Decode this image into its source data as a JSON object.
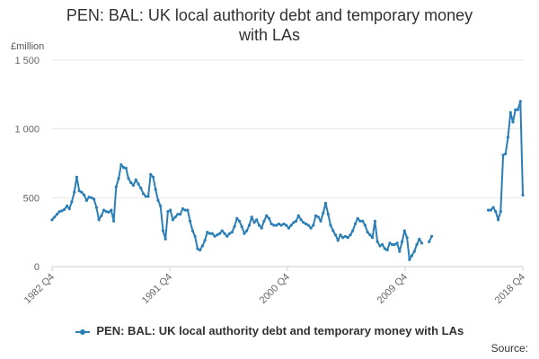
{
  "title_line1": "PEN: BAL: UK local authority debt and temporary money",
  "title_line2": "with LAs",
  "unit_label": "£million",
  "legend_label": "PEN: BAL: UK local authority debt and temporary money with LAs",
  "source_label": "Source:",
  "colors": {
    "series": "#2B7EB6",
    "grid": "#e6e6e6",
    "axis": "#cccccc"
  },
  "chart_data": {
    "type": "line",
    "title": "PEN: BAL: UK local authority debt and temporary money with LAs",
    "ylabel": "£million",
    "ylim": [
      0,
      1500
    ],
    "yticks": [
      0,
      500,
      1000,
      1500
    ],
    "ytick_labels": [
      "0",
      "500",
      "1 000",
      "1 500"
    ],
    "xticks": [
      "1982 Q4",
      "1991 Q4",
      "2000 Q4",
      "2009 Q4",
      "2018 Q4"
    ],
    "x_start": "1982 Q4",
    "x_end": "2018 Q4",
    "frequency": "monthly",
    "grid": "horizontal",
    "legend_position": "bottom",
    "series": [
      {
        "name": "PEN: BAL: UK local authority debt and temporary money with LAs",
        "values": [
          340,
          360,
          380,
          400,
          405,
          415,
          440,
          420,
          470,
          540,
          650,
          550,
          540,
          520,
          480,
          505,
          500,
          490,
          430,
          340,
          370,
          410,
          400,
          395,
          410,
          330,
          580,
          640,
          740,
          720,
          715,
          640,
          610,
          590,
          630,
          600,
          570,
          530,
          510,
          510,
          670,
          650,
          560,
          480,
          440,
          260,
          200,
          400,
          410,
          340,
          360,
          380,
          380,
          420,
          410,
          410,
          330,
          260,
          220,
          130,
          120,
          150,
          190,
          250,
          240,
          240,
          220,
          230,
          240,
          260,
          240,
          220,
          240,
          250,
          290,
          350,
          330,
          290,
          240,
          260,
          300,
          360,
          320,
          340,
          300,
          280,
          330,
          370,
          350,
          310,
          300,
          300,
          310,
          300,
          310,
          300,
          280,
          300,
          320,
          330,
          370,
          340,
          320,
          310,
          300,
          280,
          300,
          370,
          360,
          330,
          390,
          460,
          380,
          300,
          260,
          230,
          190,
          230,
          210,
          220,
          210,
          230,
          260,
          310,
          350,
          330,
          330,
          300,
          250,
          230,
          210,
          330,
          180,
          150,
          160,
          130,
          120,
          170,
          160,
          160,
          170,
          110,
          180,
          260,
          210,
          50,
          80,
          110,
          160,
          200,
          170,
          null,
          null,
          180,
          220,
          null,
          null,
          null,
          null,
          null,
          null,
          null,
          null,
          null,
          null,
          null,
          null,
          null,
          null,
          null,
          null,
          null,
          null,
          null,
          null,
          null,
          null,
          410,
          410,
          430,
          400,
          340,
          400,
          810,
          820,
          940,
          1120,
          1050,
          1140,
          1140,
          1200,
          520
        ]
      }
    ]
  }
}
